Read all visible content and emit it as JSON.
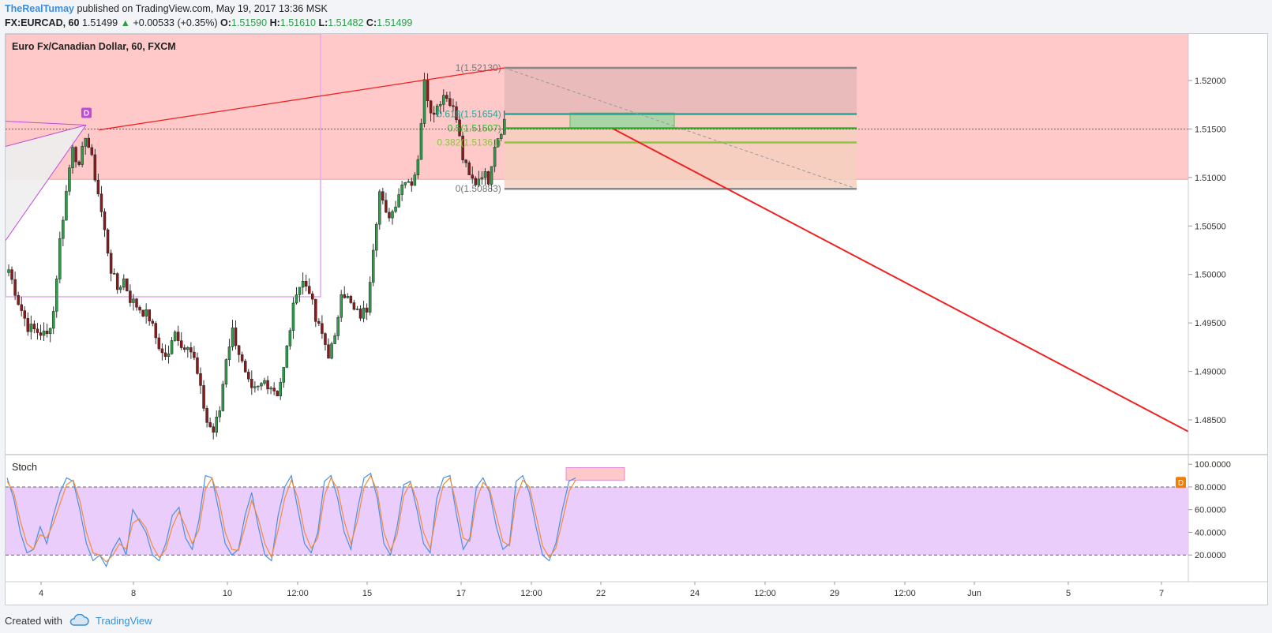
{
  "header": {
    "author": "TheRealTumay",
    "published": "published on TradingView.com, May 19, 2017 13:36 MSK",
    "symbol": "FX:EURCAD, 60",
    "last": "1.51499",
    "change": "+0.00533 (+0.35%)",
    "o_label": "O:",
    "o": "1.51590",
    "h_label": "H:",
    "h": "1.51610",
    "l_label": "L:",
    "l": "1.51482",
    "c_label": "C:",
    "c": "1.51499"
  },
  "chart_title": "Euro Fx/Canadian Dollar, 60, FXCM",
  "indicator_label": "Stoch",
  "footer": {
    "created_with": "Created with",
    "brand": "TradingView"
  },
  "colors": {
    "up": "#2e9d4a",
    "down": "#8b1a1a",
    "supply_zone": "#ffc9c9",
    "stoch_band": "#ebcdfc",
    "k_line": "#4a90e2",
    "d_line": "#f28c38",
    "trendline": "#ee2222",
    "pattern": "#c04ad8"
  },
  "icons": [
    "tradingview-cloud-icon",
    "d-marker-icon"
  ],
  "chart_data": [
    {
      "type": "candlestick",
      "title": "Euro Fx/Canadian Dollar, 60, FXCM",
      "interval": "60",
      "x_ticks": [
        "4",
        "8",
        "10",
        "12:00",
        "15",
        "17",
        "12:00",
        "22",
        "24",
        "12:00",
        "29",
        "12:00",
        "Jun",
        "5",
        "7"
      ],
      "y_ticks": [
        "1.52000",
        "1.51500",
        "1.51000",
        "1.50500",
        "1.50000",
        "1.49500",
        "1.49000",
        "1.48500"
      ],
      "ylim": [
        1.4815,
        1.5248
      ],
      "last_price": 1.51499,
      "price_path": [
        [
          0,
          1.5005
        ],
        [
          3,
          1.4972
        ],
        [
          6,
          1.4946
        ],
        [
          9,
          1.4941
        ],
        [
          12,
          1.4937
        ],
        [
          14,
          1.4962
        ],
        [
          16,
          1.5035
        ],
        [
          18,
          1.5085
        ],
        [
          20,
          1.5135
        ],
        [
          22,
          1.5108
        ],
        [
          24,
          1.5145
        ],
        [
          26,
          1.5118
        ],
        [
          28,
          1.5084
        ],
        [
          30,
          1.5044
        ],
        [
          32,
          1.5005
        ],
        [
          34,
          1.4985
        ],
        [
          36,
          1.4995
        ],
        [
          38,
          1.4975
        ],
        [
          40,
          1.4968
        ],
        [
          42,
          1.4962
        ],
        [
          44,
          1.4955
        ],
        [
          46,
          1.4935
        ],
        [
          48,
          1.4918
        ],
        [
          50,
          1.4915
        ],
        [
          52,
          1.4945
        ],
        [
          54,
          1.4925
        ],
        [
          56,
          1.493
        ],
        [
          58,
          1.4912
        ],
        [
          60,
          1.488
        ],
        [
          62,
          1.4848
        ],
        [
          64,
          1.4838
        ],
        [
          66,
          1.486
        ],
        [
          68,
          1.4915
        ],
        [
          70,
          1.4942
        ],
        [
          72,
          1.492
        ],
        [
          74,
          1.4895
        ],
        [
          76,
          1.4878
        ],
        [
          78,
          1.4882
        ],
        [
          80,
          1.489
        ],
        [
          82,
          1.4885
        ],
        [
          84,
          1.4878
        ],
        [
          86,
          1.4902
        ],
        [
          88,
          1.4945
        ],
        [
          90,
          1.4985
        ],
        [
          92,
          1.4992
        ],
        [
          94,
          1.4985
        ],
        [
          96,
          1.4952
        ],
        [
          98,
          1.4938
        ],
        [
          100,
          1.4918
        ],
        [
          102,
          1.4932
        ],
        [
          104,
          1.4985
        ],
        [
          106,
          1.4975
        ],
        [
          108,
          1.4962
        ],
        [
          110,
          1.4958
        ],
        [
          112,
          1.4965
        ],
        [
          114,
          1.503
        ],
        [
          116,
          1.5085
        ],
        [
          118,
          1.506
        ],
        [
          120,
          1.5065
        ],
        [
          122,
          1.5085
        ],
        [
          124,
          1.51
        ],
        [
          126,
          1.5095
        ],
        [
          128,
          1.5115
        ],
        [
          130,
          1.5205
        ],
        [
          132,
          1.5165
        ],
        [
          134,
          1.5175
        ],
        [
          136,
          1.5185
        ],
        [
          138,
          1.518
        ],
        [
          140,
          1.516
        ],
        [
          142,
          1.512
        ],
        [
          144,
          1.51
        ],
        [
          146,
          1.5095
        ],
        [
          148,
          1.5105
        ],
        [
          150,
          1.5098
        ],
        [
          152,
          1.5135
        ],
        [
          154,
          1.515
        ],
        [
          155,
          1.516
        ]
      ]
    },
    {
      "type": "fibonacci",
      "levels": [
        {
          "label": "1(1.52130)",
          "ratio": 1,
          "value": 1.5213
        },
        {
          "label": "0.618(1.51654)",
          "ratio": 0.618,
          "value": 1.51654
        },
        {
          "label": "0.5(1.51507)",
          "ratio": 0.5,
          "value": 1.51507
        },
        {
          "label": "0.382(1.51361)",
          "ratio": 0.382,
          "value": 1.51361
        },
        {
          "label": "0(1.50883)",
          "ratio": 0,
          "value": 1.50883
        }
      ]
    },
    {
      "type": "line",
      "title": "Stoch",
      "y_ticks": [
        "100.0000",
        "80.0000",
        "60.0000",
        "40.0000",
        "20.0000"
      ],
      "ylim": [
        0,
        105
      ],
      "band": [
        20,
        80
      ],
      "series": [
        {
          "name": "%K",
          "values": [
            88,
            70,
            40,
            22,
            25,
            45,
            30,
            55,
            75,
            88,
            85,
            60,
            30,
            15,
            20,
            10,
            25,
            35,
            20,
            60,
            50,
            40,
            20,
            15,
            30,
            55,
            62,
            35,
            25,
            50,
            90,
            88,
            60,
            30,
            20,
            25,
            55,
            75,
            45,
            20,
            15,
            55,
            80,
            90,
            60,
            30,
            22,
            40,
            85,
            90,
            70,
            40,
            25,
            60,
            88,
            92,
            70,
            30,
            20,
            45,
            82,
            85,
            60,
            30,
            22,
            70,
            88,
            90,
            55,
            25,
            35,
            80,
            88,
            75,
            45,
            25,
            30,
            85,
            90,
            75,
            45,
            20,
            15,
            30,
            60,
            85,
            88
          ]
        },
        {
          "name": "%D",
          "values": [
            85,
            75,
            50,
            30,
            25,
            38,
            35,
            48,
            65,
            82,
            86,
            68,
            40,
            22,
            20,
            14,
            20,
            30,
            25,
            48,
            52,
            44,
            28,
            18,
            25,
            45,
            58,
            45,
            30,
            42,
            78,
            88,
            70,
            40,
            25,
            24,
            45,
            68,
            52,
            30,
            18,
            42,
            70,
            86,
            70,
            40,
            26,
            35,
            72,
            88,
            78,
            50,
            30,
            50,
            80,
            90,
            76,
            40,
            24,
            38,
            72,
            84,
            68,
            40,
            26,
            58,
            82,
            88,
            64,
            35,
            32,
            68,
            84,
            78,
            55,
            32,
            28,
            70,
            86,
            80,
            55,
            28,
            18,
            26,
            50,
            76,
            86
          ]
        }
      ]
    }
  ]
}
